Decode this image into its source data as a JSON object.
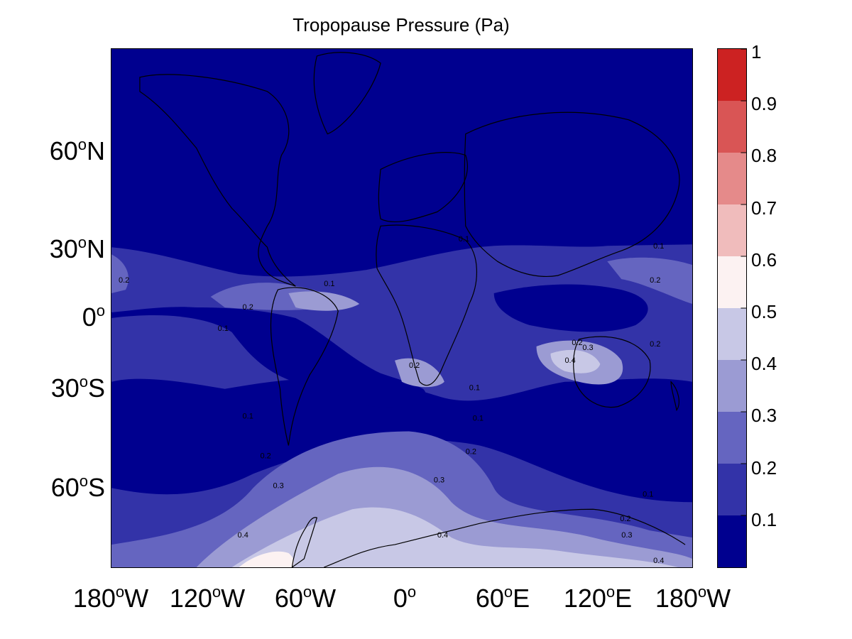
{
  "title": "Tropopause Pressure (Pa)",
  "y_ticks": [
    {
      "value": "60",
      "deg": "o",
      "hemi": "N"
    },
    {
      "value": "30",
      "deg": "o",
      "hemi": "N"
    },
    {
      "value": "0",
      "deg": "o",
      "hemi": ""
    },
    {
      "value": "30",
      "deg": "o",
      "hemi": "S"
    },
    {
      "value": "60",
      "deg": "o",
      "hemi": "S"
    }
  ],
  "x_ticks": [
    {
      "value": "180",
      "deg": "o",
      "hemi": "W"
    },
    {
      "value": "120",
      "deg": "o",
      "hemi": "W"
    },
    {
      "value": "60",
      "deg": "o",
      "hemi": "W"
    },
    {
      "value": "0",
      "deg": "o",
      "hemi": ""
    },
    {
      "value": "60",
      "deg": "o",
      "hemi": "E"
    },
    {
      "value": "120",
      "deg": "o",
      "hemi": "E"
    },
    {
      "value": "180",
      "deg": "o",
      "hemi": "W"
    }
  ],
  "colorbar": {
    "labels": [
      "1",
      "0.9",
      "0.8",
      "0.7",
      "0.6",
      "0.5",
      "0.4",
      "0.3",
      "0.2",
      "0.1"
    ],
    "colors_top_to_bottom": [
      "#cc2222",
      "#d95555",
      "#e58a8a",
      "#f0bcbc",
      "#fcf2f2",
      "#c8c8e6",
      "#9b9bd3",
      "#6565c0",
      "#3333a8",
      "#00008f"
    ]
  },
  "contour_labels": [
    "0.1",
    "0.2",
    "0.3",
    "0.4"
  ],
  "colors": {
    "level_0": "#00008f",
    "level_1": "#3333a8",
    "level_2": "#6565c0",
    "level_3": "#9b9bd3",
    "level_4": "#c8c8e6",
    "level_5": "#fcf2f2",
    "coastline": "#000000"
  }
}
